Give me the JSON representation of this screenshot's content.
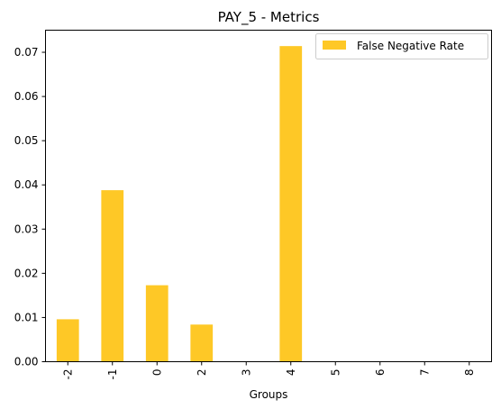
{
  "chart_data": {
    "type": "bar",
    "title": "PAY_5 - Metrics",
    "xlabel": "Groups",
    "ylabel": "",
    "categories": [
      "-2",
      "-1",
      "0",
      "2",
      "3",
      "4",
      "5",
      "6",
      "7",
      "8"
    ],
    "series": [
      {
        "name": "False Negative Rate",
        "color": "#fec826",
        "values": [
          0.0096,
          0.0388,
          0.0173,
          0.0084,
          0,
          0.0714,
          0,
          0,
          0,
          0
        ]
      }
    ],
    "ylim": [
      0,
      0.075
    ],
    "yticks": [
      "0.00",
      "0.01",
      "0.02",
      "0.03",
      "0.04",
      "0.05",
      "0.06",
      "0.07"
    ],
    "ytick_values": [
      0,
      0.01,
      0.02,
      0.03,
      0.04,
      0.05,
      0.06,
      0.07
    ],
    "grid": false,
    "legend_position": "top-right"
  }
}
